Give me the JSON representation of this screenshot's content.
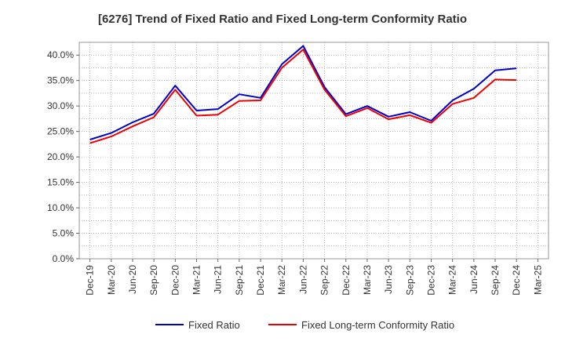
{
  "chart_data": {
    "type": "line",
    "title": "[6276]  Trend of Fixed Ratio and Fixed Long-term Conformity Ratio",
    "xlabel": "",
    "ylabel": "",
    "x": [
      "Dec-19",
      "Mar-20",
      "Jun-20",
      "Sep-20",
      "Dec-20",
      "Mar-21",
      "Jun-21",
      "Sep-21",
      "Dec-21",
      "Mar-22",
      "Jun-22",
      "Sep-22",
      "Dec-22",
      "Mar-23",
      "Jun-23",
      "Sep-23",
      "Dec-23",
      "Mar-24",
      "Jun-24",
      "Sep-24",
      "Dec-24",
      "Mar-25"
    ],
    "y_ticks": [
      "0.0%",
      "5.0%",
      "10.0%",
      "15.0%",
      "20.0%",
      "25.0%",
      "30.0%",
      "35.0%",
      "40.0%"
    ],
    "y_tick_values": [
      0,
      5,
      10,
      15,
      20,
      25,
      30,
      35,
      40
    ],
    "ylim": [
      0,
      42.5
    ],
    "grid": true,
    "legend_position": "bottom",
    "series": [
      {
        "name": "Fixed Ratio",
        "color": "#0000cc",
        "values": [
          23.4,
          24.7,
          26.8,
          28.5,
          34.0,
          29.1,
          29.4,
          32.3,
          31.6,
          38.2,
          41.8,
          33.7,
          28.4,
          30.0,
          27.9,
          28.8,
          27.1,
          31.1,
          33.4,
          37.0,
          37.4,
          null
        ]
      },
      {
        "name": "Fixed Long-term Conformity Ratio",
        "color": "#ee0000",
        "values": [
          22.7,
          24.0,
          26.0,
          27.8,
          33.2,
          28.1,
          28.3,
          31.0,
          31.1,
          37.5,
          41.1,
          33.2,
          28.0,
          29.6,
          27.4,
          28.2,
          26.7,
          30.4,
          31.6,
          35.2,
          35.1,
          null
        ]
      }
    ]
  }
}
